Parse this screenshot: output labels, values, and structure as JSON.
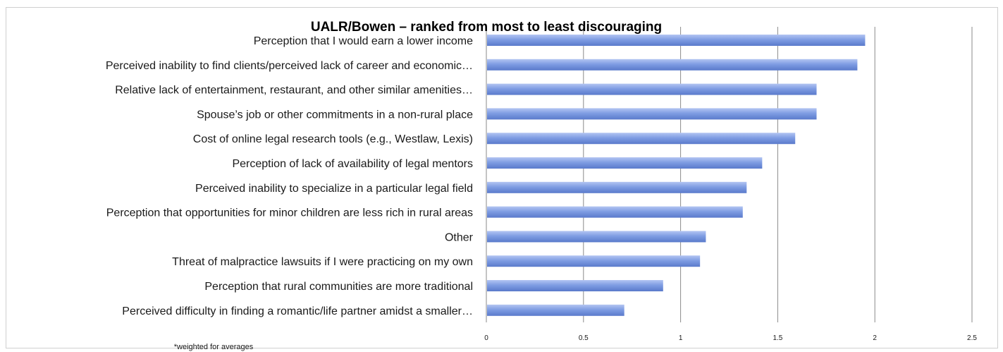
{
  "chart_data": {
    "type": "bar",
    "orientation": "horizontal",
    "title": "UALR/Bowen – ranked from most to least discouraging",
    "footnote": "*weighted for averages",
    "categories": [
      "Perception that I would earn a lower income",
      "Perceived inability to find clients/perceived lack of career and economic…",
      "Relative lack of entertainment, restaurant, and other similar amenities…",
      "Spouse’s job or other commitments in a non-rural place",
      "Cost of online legal research tools (e.g., Westlaw, Lexis)",
      "Perception of lack of availability of legal mentors",
      "Perceived inability to specialize in a particular legal field",
      "Perception that opportunities for minor children are less rich in rural areas",
      "Other",
      "Threat of malpractice lawsuits if I were practicing on my own",
      "Perception that rural communities are more traditional",
      "Perceived difficulty in finding a romantic/life partner amidst a smaller…"
    ],
    "values": [
      1.95,
      1.91,
      1.7,
      1.7,
      1.59,
      1.42,
      1.34,
      1.32,
      1.13,
      1.1,
      0.91,
      0.71
    ],
    "xlim": [
      0,
      2.5
    ],
    "xticks": [
      0,
      0.5,
      1,
      1.5,
      2,
      2.5
    ],
    "xtick_labels": [
      "0",
      "0.5",
      "1",
      "1.5",
      "2",
      "2.5"
    ],
    "grid": "vertical",
    "colors": {
      "bar": "#7b98e0",
      "bar_light": "#a9bdf0",
      "bar_dark": "#5878c8",
      "grid": "#8a8a8a"
    }
  }
}
